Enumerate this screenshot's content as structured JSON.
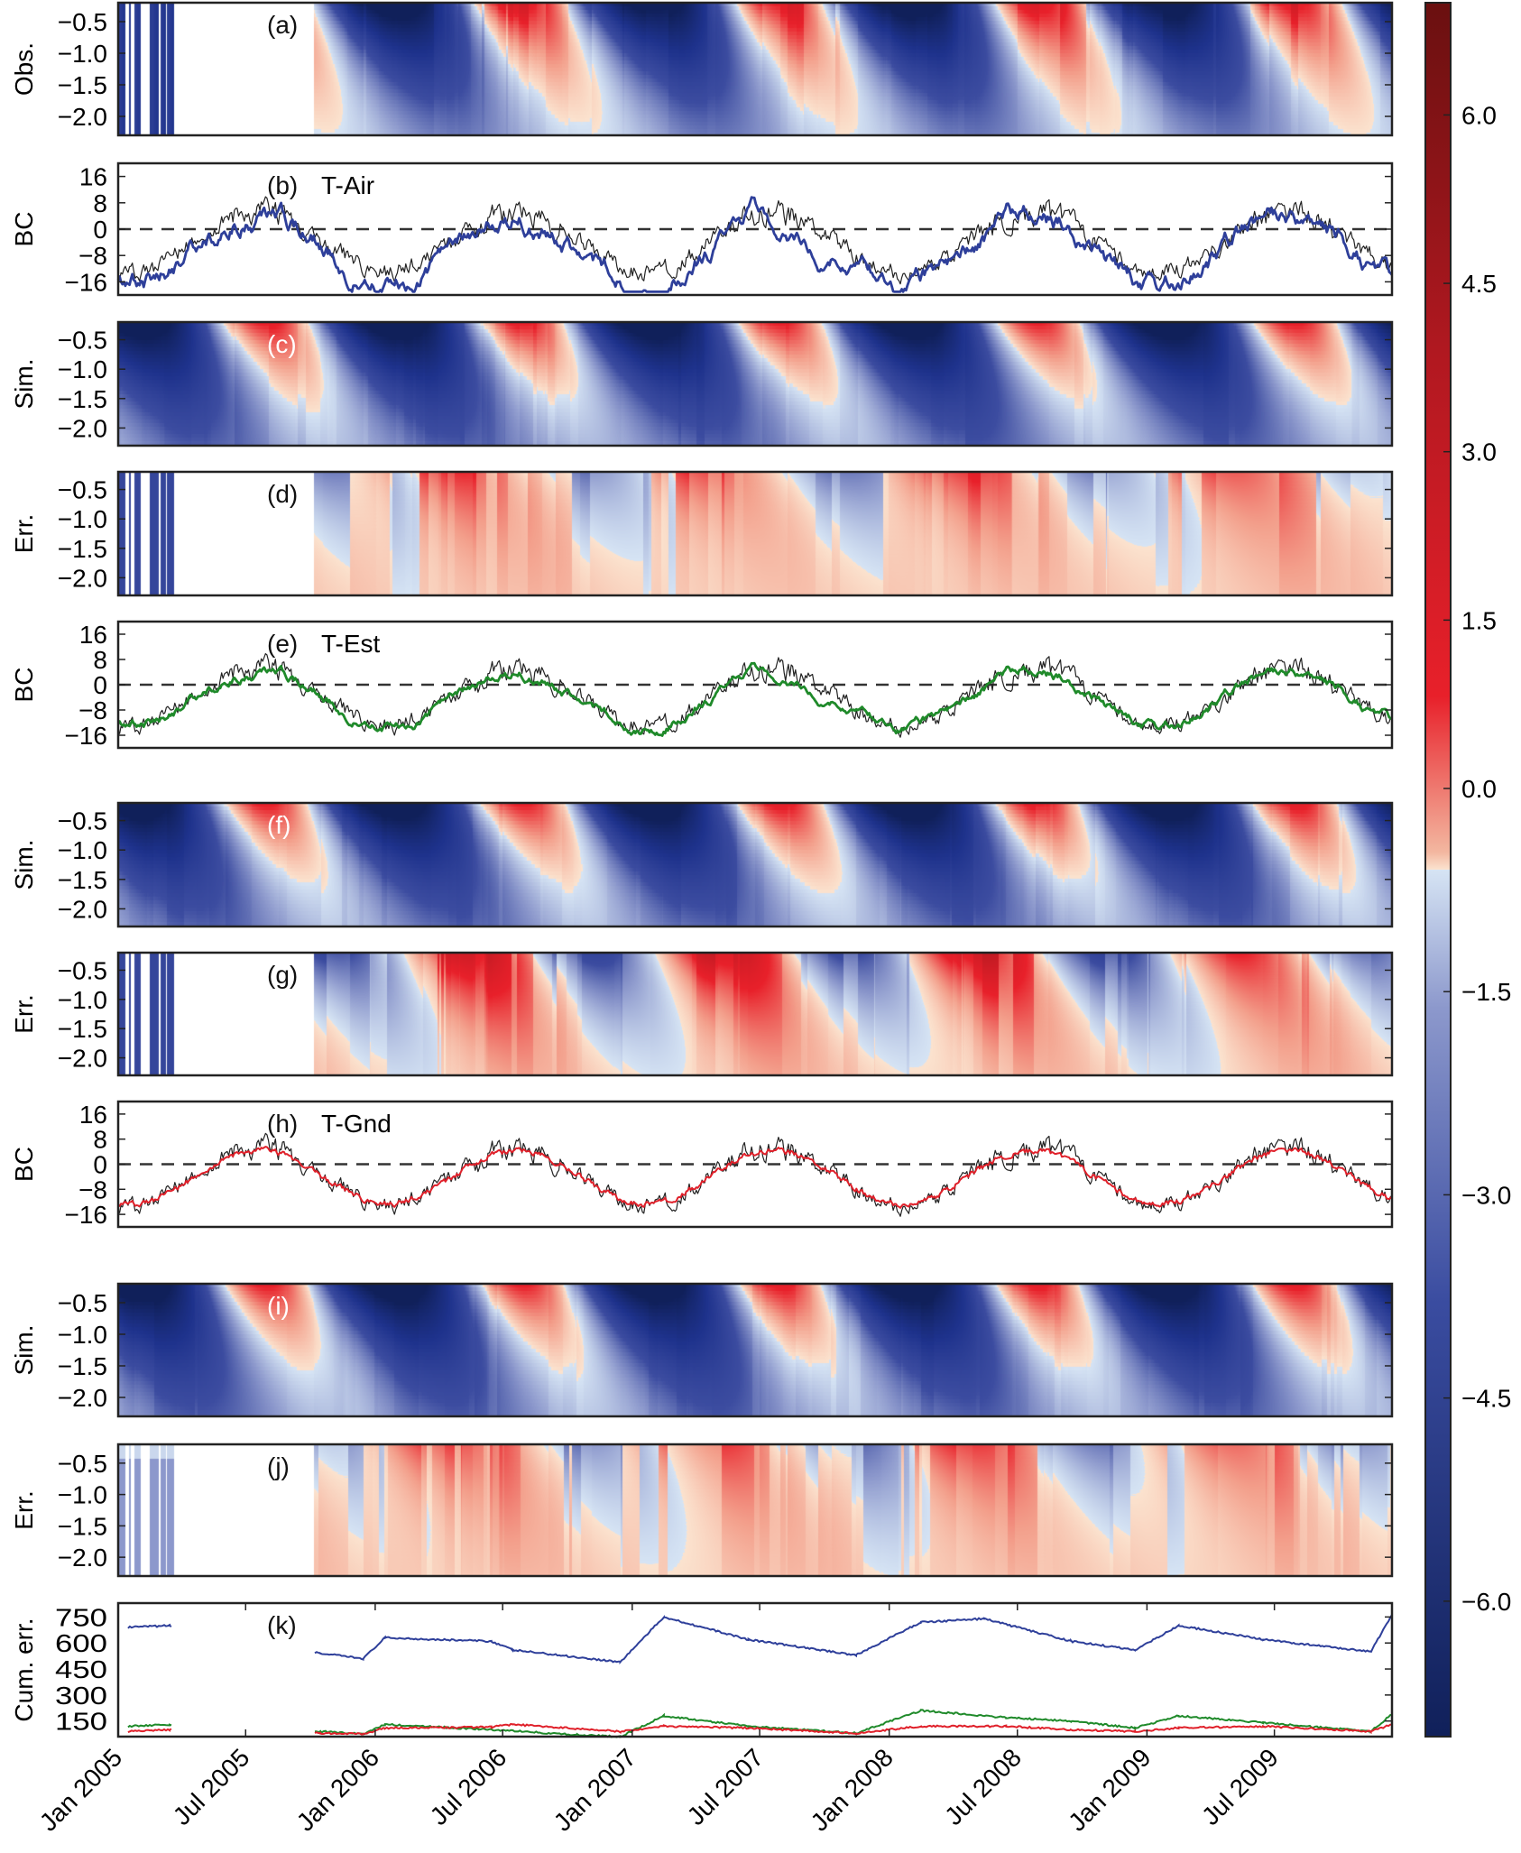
{
  "figure": {
    "time_axis": {
      "start": "2005-01-01",
      "end": "2009-12-15",
      "ticks": [
        "Jan 2005",
        "Jul 2005",
        "Jan 2006",
        "Jul 2006",
        "Jan 2007",
        "Jul 2007",
        "Jan 2008",
        "Jul 2008",
        "Jan 2009",
        "Jul 2009"
      ],
      "tick_dates": [
        "2005-01-01",
        "2005-07-01",
        "2006-01-01",
        "2006-07-01",
        "2007-01-01",
        "2007-07-01",
        "2008-01-01",
        "2008-07-01",
        "2009-01-01",
        "2009-07-01"
      ]
    },
    "colorbar": {
      "range": [
        -7.0,
        7.0
      ],
      "ticks": [
        "6.0",
        "4.5",
        "3.0",
        "1.5",
        "0.0",
        "−1.5",
        "−3.0",
        "−4.5",
        "−6.0"
      ],
      "tick_values": [
        6.0,
        4.5,
        3.0,
        1.5,
        0.0,
        -1.5,
        -3.0,
        -4.5,
        -6.0
      ],
      "colors": {
        "min": "#10205a",
        "neg_mid": "#4a5aa8",
        "zero_neg": "#d6e4f4",
        "zero_pos": "#fbe3cf",
        "pos_mid": "#e8202a",
        "max": "#6a1010"
      }
    },
    "depth_ticks": [
      "−0.5",
      "−1.0",
      "−1.5",
      "−2.0"
    ],
    "bc_ticks": [
      "16",
      "8",
      "0",
      "−8",
      "−16"
    ],
    "cum_ticks": [
      "750",
      "600",
      "450",
      "300",
      "150"
    ]
  },
  "chart_data": [
    {
      "panel": "a",
      "type": "heatmap",
      "tag": "(a)",
      "ylabel": "Obs.",
      "yrange": [
        -2.3,
        -0.2
      ],
      "description": "Observed ground temperature vs depth; gap Jun–Oct 2005",
      "data_gap": [
        "2005-05-20",
        "2005-10-05"
      ]
    },
    {
      "panel": "b",
      "type": "line",
      "tag": "(b)",
      "title": "T-Air",
      "ylabel": "BC",
      "ylim": [
        -20,
        20
      ],
      "series": [
        {
          "name": "observed BC",
          "color": "#222222"
        },
        {
          "name": "T-Air BC",
          "color": "#2e3f9a"
        }
      ],
      "monthly_approx": {
        "observed": [
          -7,
          -8,
          -6,
          -4,
          -2,
          2,
          9,
          7,
          2,
          -2,
          -6,
          -9,
          -10,
          -10,
          -6,
          -2,
          4,
          9,
          11,
          7,
          1,
          -4,
          -5,
          -6,
          -8,
          -9,
          -8,
          -5,
          -1,
          4,
          9,
          8,
          1,
          -3,
          -5,
          -6,
          -7,
          -8,
          -8,
          -6,
          -2,
          3,
          9,
          7,
          0,
          -4,
          -7,
          -9,
          -10,
          -10,
          -7,
          -4,
          0,
          4,
          9,
          7,
          1,
          -4,
          -6,
          -8
        ]
      }
    },
    {
      "panel": "c",
      "type": "heatmap",
      "tag": "(c)",
      "ylabel": "Sim.",
      "yrange": [
        -2.3,
        -0.2
      ]
    },
    {
      "panel": "d",
      "type": "heatmap",
      "tag": "(d)",
      "ylabel": "Err.",
      "yrange": [
        -2.3,
        -0.2
      ]
    },
    {
      "panel": "e",
      "type": "line",
      "tag": "(e)",
      "title": "T-Est",
      "ylabel": "BC",
      "ylim": [
        -20,
        20
      ],
      "series": [
        {
          "name": "observed BC",
          "color": "#222222"
        },
        {
          "name": "T-Est BC",
          "color": "#1f8a2a"
        }
      ]
    },
    {
      "panel": "f",
      "type": "heatmap",
      "tag": "(f)",
      "ylabel": "Sim.",
      "yrange": [
        -2.3,
        -0.2
      ]
    },
    {
      "panel": "g",
      "type": "heatmap",
      "tag": "(g)",
      "ylabel": "Err.",
      "yrange": [
        -2.3,
        -0.2
      ]
    },
    {
      "panel": "h",
      "type": "line",
      "tag": "(h)",
      "title": "T-Gnd",
      "ylabel": "BC",
      "ylim": [
        -20,
        20
      ],
      "series": [
        {
          "name": "observed BC",
          "color": "#222222"
        },
        {
          "name": "T-Gnd BC",
          "color": "#e0202a"
        }
      ]
    },
    {
      "panel": "i",
      "type": "heatmap",
      "tag": "(i)",
      "ylabel": "Sim.",
      "yrange": [
        -2.3,
        -0.2
      ]
    },
    {
      "panel": "j",
      "type": "heatmap",
      "tag": "(j)",
      "ylabel": "Err.",
      "yrange": [
        -2.3,
        -0.2
      ]
    },
    {
      "panel": "k",
      "type": "line",
      "tag": "(k)",
      "ylabel": "Cum.  err.",
      "ylim": [
        60,
        830
      ],
      "series": [
        {
          "name": "T-Air",
          "color": "#2e3f9a",
          "points": [
            [
              "2005-01",
              690
            ],
            [
              "2005-03",
              700
            ],
            [
              "2005-10",
              540
            ],
            [
              "2005-12",
              510
            ],
            [
              "2006-01",
              630
            ],
            [
              "2006-06",
              610
            ],
            [
              "2006-07",
              560
            ],
            [
              "2006-12",
              490
            ],
            [
              "2007-02",
              750
            ],
            [
              "2007-06",
              620
            ],
            [
              "2007-11",
              530
            ],
            [
              "2008-02",
              720
            ],
            [
              "2008-05",
              740
            ],
            [
              "2008-09",
              610
            ],
            [
              "2008-12",
              560
            ],
            [
              "2009-02",
              700
            ],
            [
              "2009-06",
              620
            ],
            [
              "2009-11",
              550
            ],
            [
              "2009-12",
              760
            ]
          ]
        },
        {
          "name": "T-Est",
          "color": "#1f8a2a",
          "points": [
            [
              "2005-01",
              120
            ],
            [
              "2005-03",
              130
            ],
            [
              "2005-10",
              90
            ],
            [
              "2005-12",
              75
            ],
            [
              "2006-01",
              130
            ],
            [
              "2006-06",
              100
            ],
            [
              "2006-10",
              70
            ],
            [
              "2006-12",
              60
            ],
            [
              "2007-02",
              180
            ],
            [
              "2007-06",
              120
            ],
            [
              "2007-11",
              80
            ],
            [
              "2008-02",
              210
            ],
            [
              "2008-06",
              170
            ],
            [
              "2008-09",
              150
            ],
            [
              "2008-12",
              110
            ],
            [
              "2009-02",
              180
            ],
            [
              "2009-06",
              140
            ],
            [
              "2009-11",
              90
            ],
            [
              "2009-12",
              190
            ]
          ]
        },
        {
          "name": "T-Gnd",
          "color": "#e0202a",
          "points": [
            [
              "2005-01",
              90
            ],
            [
              "2005-03",
              100
            ],
            [
              "2005-10",
              80
            ],
            [
              "2005-12",
              75
            ],
            [
              "2006-01",
              110
            ],
            [
              "2006-06",
              115
            ],
            [
              "2006-07",
              130
            ],
            [
              "2006-12",
              90
            ],
            [
              "2007-02",
              120
            ],
            [
              "2007-06",
              110
            ],
            [
              "2007-11",
              80
            ],
            [
              "2008-02",
              120
            ],
            [
              "2008-06",
              120
            ],
            [
              "2008-09",
              100
            ],
            [
              "2008-12",
              90
            ],
            [
              "2009-02",
              110
            ],
            [
              "2009-06",
              120
            ],
            [
              "2009-11",
              90
            ],
            [
              "2009-12",
              130
            ]
          ]
        }
      ]
    }
  ]
}
